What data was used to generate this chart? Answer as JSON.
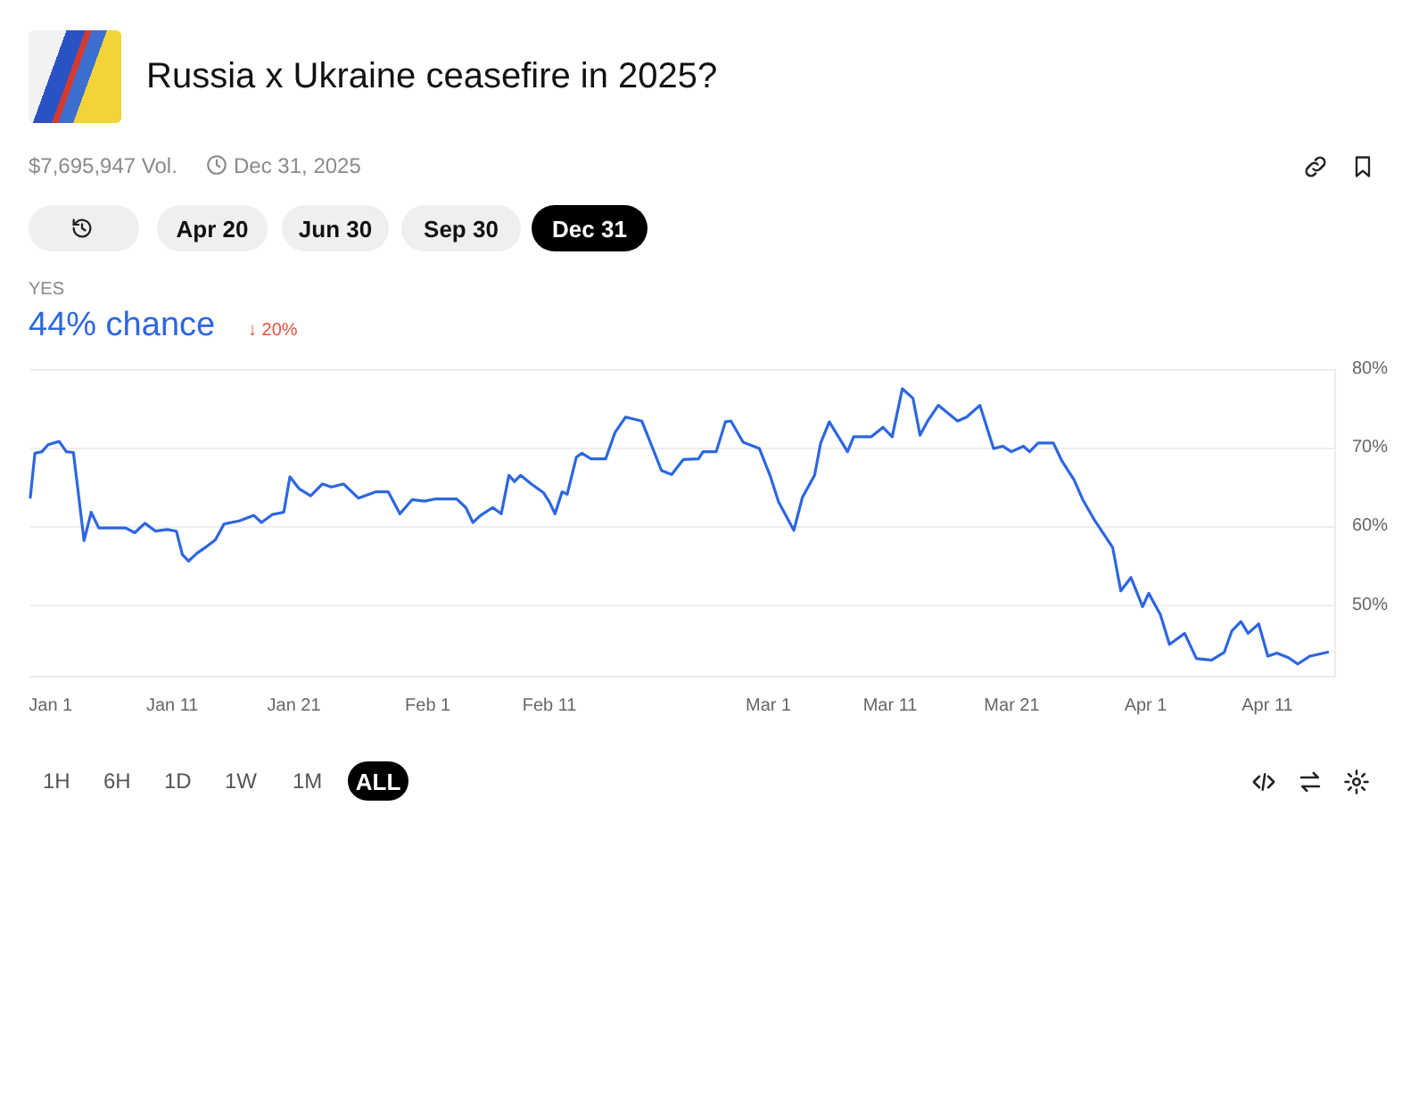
{
  "chart_data": {
    "type": "line",
    "title": "Russia x Ukraine ceasefire in 2025?",
    "subtitle": "$7,695,947 Vol.",
    "annotations": [
      "Dec 31, 2025",
      "Apr 20",
      "Jun 30",
      "Sep 30",
      "Dec 31",
      "YES",
      "44% chance",
      "↓ 20%",
      "1H",
      "6H",
      "1D",
      "1W",
      "1M",
      "ALL"
    ],
    "x": [
      "2024-12-30T08:00",
      "2024-12-30T17:00",
      "2024-12-31T07:00",
      "2024-12-31T19:00",
      "2025-01-01T17:00",
      "2025-01-02T07:00",
      "2025-01-02T21:00",
      "2025-01-03T18:00",
      "2025-01-04T08:00",
      "2025-01-04T23:00",
      "2025-01-07T04:00",
      "2025-01-07T22:00",
      "2025-01-08T18:00",
      "2025-01-09T15:00",
      "2025-01-10T14:00",
      "2025-01-11T08:00",
      "2025-01-11T20:00",
      "2025-01-12T08:00",
      "2025-01-13T01:00",
      "2025-01-13T19:00",
      "2025-01-14T13:00",
      "2025-01-15T06:00",
      "2025-01-16T12:00",
      "2025-01-17T17:00",
      "2025-01-18T08:00",
      "2025-01-19T05:00",
      "2025-01-20T04:00",
      "2025-01-20T16:00",
      "2025-01-21T10:00",
      "2025-01-22T09:00",
      "2025-01-23T08:00",
      "2025-01-24T02:00",
      "2025-01-25T02:00",
      "2025-01-26T07:00",
      "2025-01-27T18:00",
      "2025-01-28T18:00",
      "2025-01-29T17:00",
      "2025-01-30T17:00",
      "2025-01-31T17:00",
      "2025-02-01T16:00",
      "2025-02-03T09:00",
      "2025-02-04T03:00",
      "2025-02-04T17:00",
      "2025-02-05T08:00",
      "2025-02-06T08:00",
      "2025-02-07T01:00",
      "2025-02-07T16:00",
      "2025-02-08T03:00",
      "2025-02-08T15:00",
      "2025-02-09T12:00",
      "2025-02-10T12:00",
      "2025-02-11T00:00",
      "2025-02-11T11:00",
      "2025-02-12T01:00",
      "2025-02-12T11:00",
      "2025-02-13T05:00",
      "2025-02-13T16:00",
      "2025-02-14T10:00",
      "2025-02-15T15:00",
      "2025-02-16T09:00",
      "2025-02-17T06:00",
      "2025-02-18T14:00",
      "2025-02-19T07:00",
      "2025-02-20T05:00",
      "2025-02-21T01:00",
      "2025-02-22T00:00",
      "2025-02-23T06:00",
      "2025-02-23T15:00",
      "2025-02-24T17:00",
      "2025-02-25T11:00",
      "2025-02-25T22:00",
      "2025-02-26T22:00",
      "2025-02-28T06:00",
      "2025-03-01T03:00",
      "2025-03-01T20:00",
      "2025-03-03T02:00",
      "2025-03-03T19:00",
      "2025-03-04T19:00",
      "2025-03-05T07:00",
      "2025-03-06T00:00",
      "2025-03-07T12:00",
      "2025-03-08T00:00",
      "2025-03-09T11:00",
      "2025-03-10T10:00",
      "2025-03-11T04:00",
      "2025-03-12T00:00",
      "2025-03-12T21:00",
      "2025-03-13T11:00",
      "2025-03-14T02:00",
      "2025-03-14T23:00",
      "2025-03-16T13:00",
      "2025-03-17T07:00",
      "2025-03-18T09:00",
      "2025-03-19T12:00",
      "2025-03-20T06:00",
      "2025-03-20T23:00",
      "2025-03-21T23:00",
      "2025-03-22T11:00",
      "2025-03-23T04:00",
      "2025-03-24T10:00",
      "2025-03-25T03:00",
      "2025-03-26T03:00",
      "2025-03-26T20:00",
      "2025-03-27T20:00",
      "2025-03-29T07:00",
      "2025-03-29T23:00",
      "2025-03-30T19:00",
      "2025-03-31T18:00",
      "2025-04-01T06:00",
      "2025-04-02T05:00",
      "2025-04-02T23:00",
      "2025-04-04T05:00",
      "2025-04-05T04:00",
      "2025-04-06T10:00",
      "2025-04-07T11:00",
      "2025-04-08T02:00",
      "2025-04-08T20:00",
      "2025-04-09T10:00",
      "2025-04-10T07:00",
      "2025-04-11T01:00",
      "2025-04-11T19:00",
      "2025-04-12T18:00",
      "2025-04-13T12:00",
      "2025-04-14T12:00",
      "2025-04-15T23:00"
    ],
    "series": [
      {
        "color": "#2d66e0",
        "values": [
          63.7,
          69.3,
          69.5,
          70.4,
          70.8,
          69.5,
          69.4,
          58.2,
          61.8,
          59.8,
          59.8,
          59.2,
          60.4,
          59.4,
          59.6,
          59.4,
          56.4,
          55.6,
          56.6,
          57.4,
          58.3,
          60.3,
          60.7,
          61.4,
          60.5,
          61.5,
          61.8,
          66.3,
          64.8,
          63.9,
          65.4,
          65.0,
          65.4,
          63.6,
          64.4,
          64.4,
          61.6,
          63.4,
          63.2,
          63.5,
          63.5,
          62.4,
          60.5,
          61.4,
          62.4,
          61.6,
          66.5,
          65.7,
          66.5,
          65.4,
          64.3,
          63.1,
          61.6,
          64.4,
          64.1,
          68.8,
          69.3,
          68.6,
          68.6,
          71.9,
          73.9,
          73.4,
          70.7,
          67.1,
          66.6,
          68.5,
          68.6,
          69.5,
          69.5,
          73.3,
          73.4,
          70.7,
          69.9,
          66.5,
          63.1,
          59.5,
          63.7,
          66.5,
          70.6,
          73.3,
          69.5,
          71.4,
          71.4,
          72.6,
          71.4,
          77.5,
          76.3,
          71.6,
          73.4,
          75.4,
          73.4,
          73.9,
          75.4,
          69.9,
          70.2,
          69.5,
          70.2,
          69.5,
          70.6,
          70.6,
          68.3,
          65.9,
          63.4,
          60.7,
          57.3,
          51.8,
          53.5,
          49.8,
          51.5,
          48.8,
          45.0,
          46.4,
          43.2,
          43.0,
          44.0,
          46.7,
          47.9,
          46.4,
          47.6,
          43.5,
          43.9,
          43.3,
          42.5,
          43.5,
          44.0
        ]
      }
    ],
    "xlim": [
      "2024-12-30T08:00",
      "2025-04-16T12:00"
    ],
    "xticks": [
      {
        "value": "2025-01-01",
        "label": "Jan 1"
      },
      {
        "value": "2025-01-11",
        "label": "Jan 11"
      },
      {
        "value": "2025-01-21",
        "label": "Jan 21"
      },
      {
        "value": "2025-02-01",
        "label": "Feb 1"
      },
      {
        "value": "2025-02-11",
        "label": "Feb 11"
      },
      {
        "value": "2025-03-01",
        "label": "Mar 1"
      },
      {
        "value": "2025-03-11",
        "label": "Mar 11"
      },
      {
        "value": "2025-03-21",
        "label": "Mar 21"
      },
      {
        "value": "2025-04-01",
        "label": "Apr 1"
      },
      {
        "value": "2025-04-11",
        "label": "Apr 11"
      }
    ],
    "ylim": [
      41,
      80
    ],
    "yticks": [
      {
        "value": 50,
        "label": "50%"
      },
      {
        "value": 60,
        "label": "60%"
      },
      {
        "value": 70,
        "label": "70%"
      },
      {
        "value": 80,
        "label": "80%"
      }
    ],
    "grid": "y",
    "marker": "none",
    "line_style": "solid"
  }
}
